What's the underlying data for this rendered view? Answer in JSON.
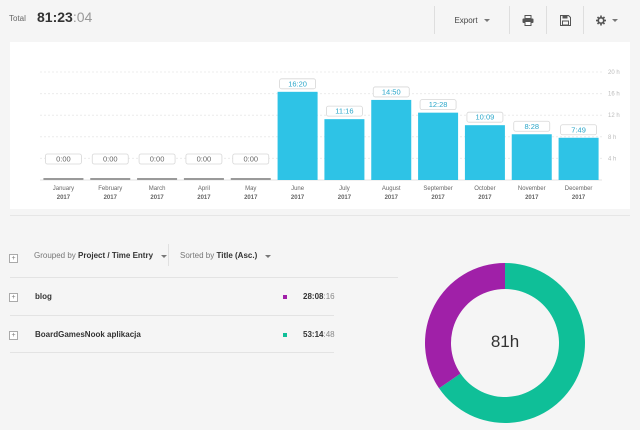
{
  "header": {
    "total_label": "Total",
    "total_main": "81:23",
    "total_seconds": ":04",
    "export_label": "Export",
    "print_icon": "printer-icon",
    "save_icon": "floppy-disk-icon",
    "settings_icon": "gear-icon"
  },
  "chart_data": {
    "type": "bar",
    "categories": [
      "January",
      "February",
      "March",
      "April",
      "May",
      "June",
      "July",
      "August",
      "September",
      "October",
      "November",
      "December"
    ],
    "years": [
      "2017",
      "2017",
      "2017",
      "2017",
      "2017",
      "2017",
      "2017",
      "2017",
      "2017",
      "2017",
      "2017",
      "2017"
    ],
    "values": [
      0,
      0,
      0,
      0,
      0,
      16.33,
      11.27,
      14.83,
      12.47,
      10.15,
      8.47,
      7.82
    ],
    "value_labels": [
      "0:00",
      "0:00",
      "0:00",
      "0:00",
      "0:00",
      "16:20",
      "11:16",
      "14:50",
      "12:28",
      "10:09",
      "8:28",
      "7:49"
    ],
    "y_ticks": [
      4,
      8,
      12,
      16,
      20
    ],
    "y_tick_labels": [
      "4 h",
      "8 h",
      "12 h",
      "16 h",
      "20 h"
    ],
    "ylim": [
      0,
      20
    ],
    "bar_color": "#2ec3e6",
    "zero_bar_color": "#9a9a9a",
    "grid": true
  },
  "grouping": {
    "grouped_prefix": "Grouped by",
    "grouped_value": "Project / Time Entry",
    "sorted_prefix": "Sorted by",
    "sorted_value": "Title (Asc.)"
  },
  "projects": [
    {
      "title": "blog",
      "time_main": "28:08",
      "time_seconds": ":16",
      "color": "#a020a8",
      "hours": 28.14
    },
    {
      "title": "BoardGamesNook aplikacja",
      "time_main": "53:14",
      "time_seconds": ":48",
      "color": "#0fbf98",
      "hours": 53.25
    }
  ],
  "donut": {
    "center_label": "81h"
  }
}
